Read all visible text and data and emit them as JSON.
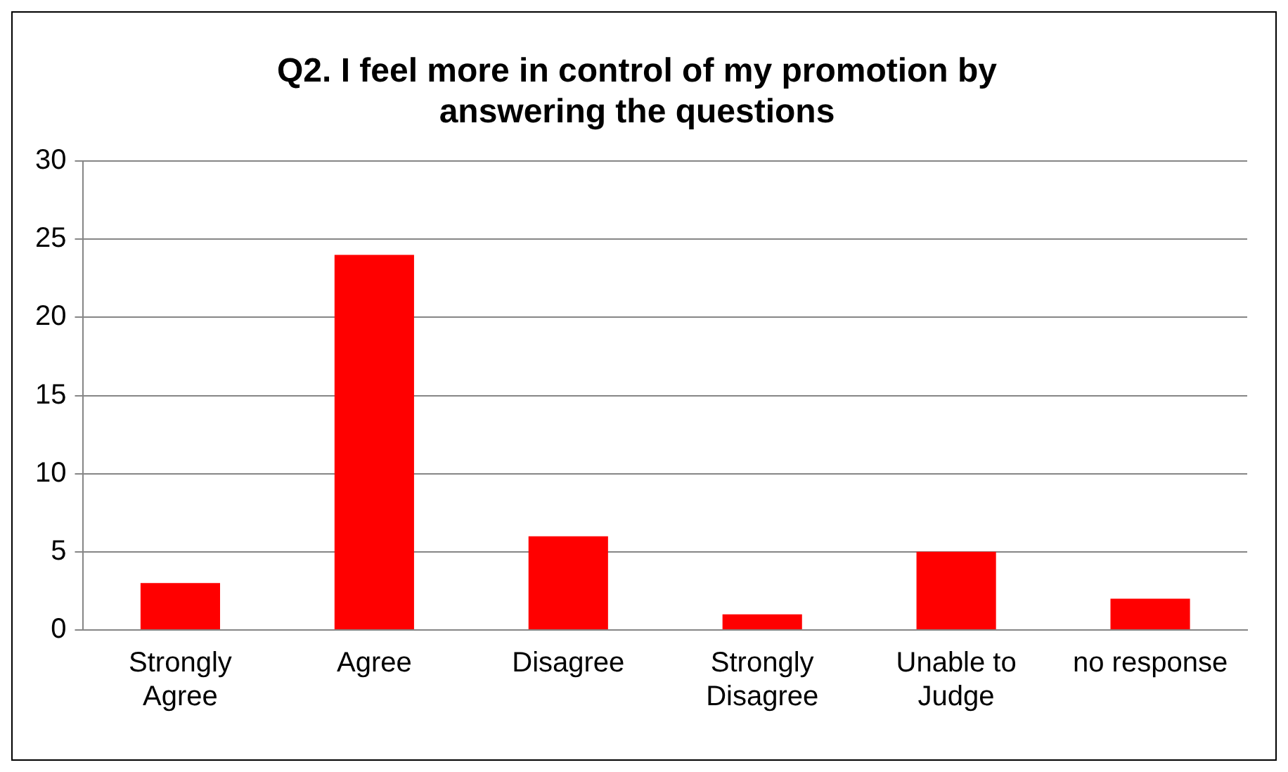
{
  "chart_data": {
    "type": "bar",
    "title": "Q2. I feel more in control of my promotion by answering the questions",
    "categories": [
      "Strongly Agree",
      "Agree",
      "Disagree",
      "Strongly Disagree",
      "Unable to Judge",
      "no response"
    ],
    "values": [
      3,
      24,
      6,
      1,
      5,
      2
    ],
    "color": "#ff0000",
    "ylim": [
      0,
      30
    ],
    "yticks": [
      0,
      5,
      10,
      15,
      20,
      25,
      30
    ],
    "grid": "y",
    "legend": false
  }
}
